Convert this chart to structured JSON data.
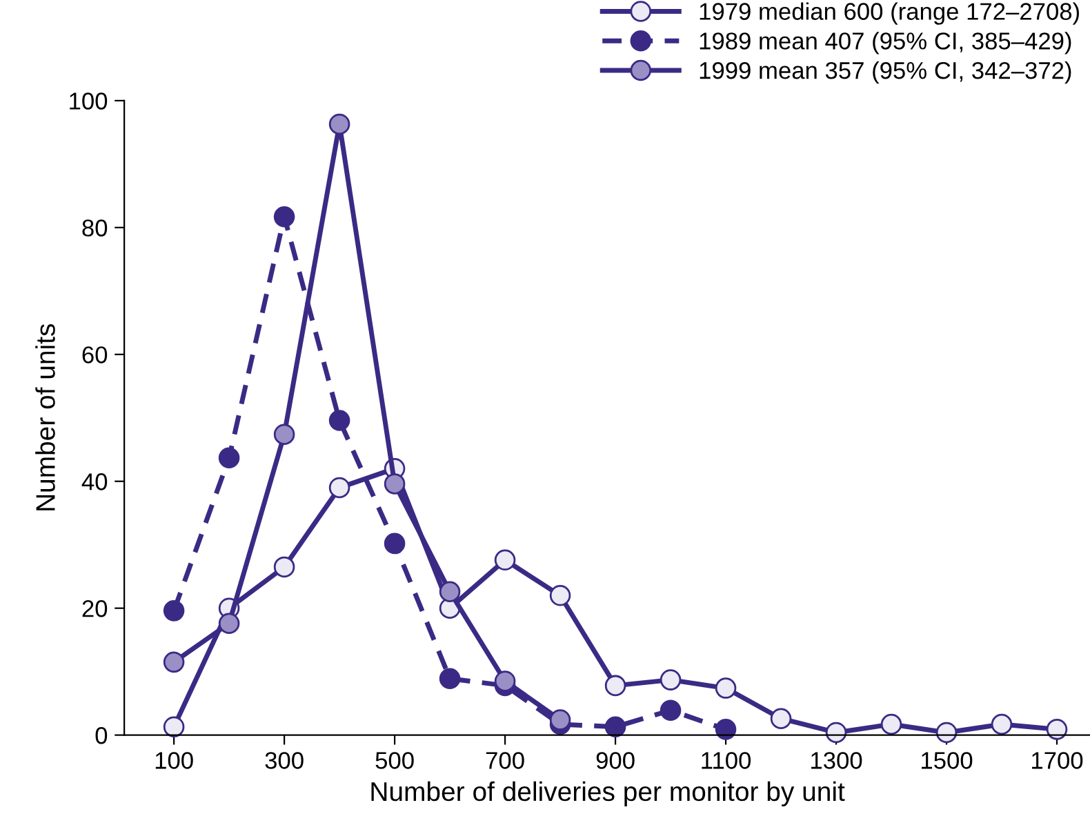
{
  "chart_data": {
    "type": "line",
    "xlabel": "Number of deliveries per monitor by unit",
    "ylabel": "Number of units",
    "color": "#3b2a85",
    "marker": "circle",
    "legend": "top right",
    "grid": false,
    "xlim": [
      10,
      1760
    ],
    "xticks": [
      100,
      300,
      500,
      700,
      900,
      1100,
      1300,
      1500,
      1700
    ],
    "ylim": [
      0,
      100
    ],
    "yticks": [
      0,
      20,
      40,
      60,
      80,
      100
    ],
    "series": [
      {
        "name": "1979 median 600 (range 172–2708)",
        "color": "#eceaf5",
        "line_style": "solid",
        "x": [
          100,
          200,
          300,
          400,
          500,
          600,
          700,
          800,
          900,
          1000,
          1100,
          1200,
          1300,
          1400,
          1500,
          1600,
          1700
        ],
        "values": [
          1.3,
          20,
          26.5,
          39,
          42,
          20,
          27.6,
          22,
          7.8,
          8.7,
          7.4,
          2.6,
          0.4,
          1.7,
          0.4,
          1.7,
          0.9
        ]
      },
      {
        "name": "1989 mean 407 (95% CI, 385–429)",
        "color": "#3b2a85",
        "line_style": "dashed",
        "x": [
          100,
          200,
          300,
          400,
          500,
          600,
          700,
          800,
          900,
          1000,
          1100
        ],
        "values": [
          19.6,
          43.7,
          81.7,
          49.6,
          30.2,
          8.9,
          7.8,
          1.7,
          1.3,
          3.9,
          0.9
        ]
      },
      {
        "name": "1999 mean 357 (95% CI, 342–372)",
        "color": "#9b90c6",
        "line_style": "solid",
        "x": [
          100,
          200,
          300,
          400,
          500,
          600,
          700,
          800
        ],
        "values": [
          11.5,
          17.6,
          47.4,
          96.3,
          39.6,
          22.6,
          8.5,
          2.4
        ]
      }
    ]
  }
}
